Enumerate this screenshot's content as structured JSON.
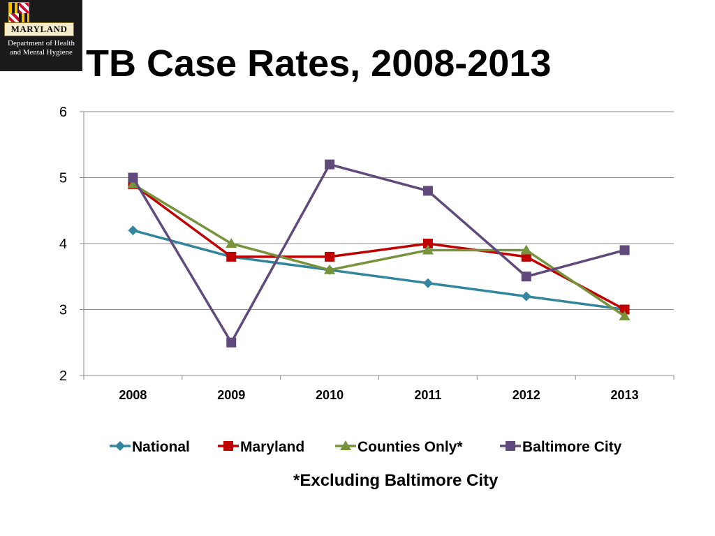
{
  "logo": {
    "banner": "MARYLAND",
    "dept_line1": "Department of Health",
    "dept_line2": "and Mental Hygiene"
  },
  "title": "TB Case Rates, 2008-2013",
  "footnote": "*Excluding Baltimore City",
  "chart_data": {
    "type": "line",
    "title": "TB Case Rates, 2008-2013",
    "xlabel": "",
    "ylabel": "",
    "categories": [
      "2008",
      "2009",
      "2010",
      "2011",
      "2012",
      "2013"
    ],
    "ylim": [
      2,
      6
    ],
    "yticks": [
      2,
      3,
      4,
      5,
      6
    ],
    "grid": true,
    "legend_position": "bottom",
    "series": [
      {
        "name": "National",
        "color": "#31859C",
        "marker": "diamond",
        "values": [
          4.2,
          3.8,
          3.6,
          3.4,
          3.2,
          3.0
        ]
      },
      {
        "name": "Maryland",
        "color": "#C00000",
        "marker": "square",
        "values": [
          4.9,
          3.8,
          3.8,
          4.0,
          3.8,
          3.0
        ]
      },
      {
        "name": "Counties Only*",
        "color": "#77933C",
        "marker": "triangle",
        "values": [
          4.9,
          4.0,
          3.6,
          3.9,
          3.9,
          2.9
        ]
      },
      {
        "name": "Baltimore City",
        "color": "#604A7B",
        "marker": "square",
        "values": [
          5.0,
          2.5,
          5.2,
          4.8,
          3.5,
          3.9
        ]
      }
    ]
  }
}
